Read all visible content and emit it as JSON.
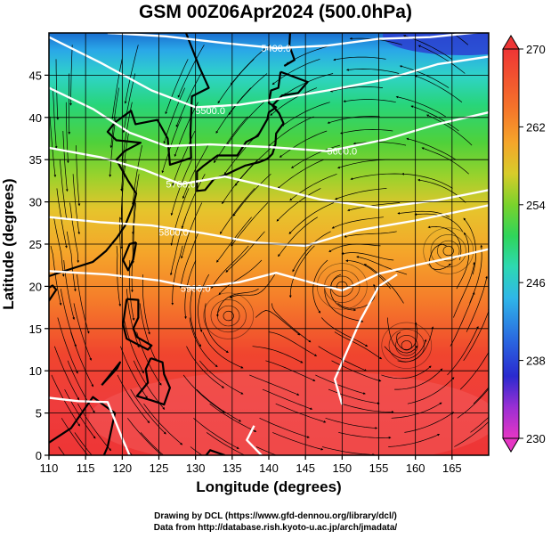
{
  "title": "GSM 00Z06Apr2024 (500.0hPa)",
  "x_axis": {
    "label": "Longitude (degrees)",
    "range": [
      110,
      170
    ],
    "ticks": [
      110,
      115,
      120,
      125,
      130,
      135,
      140,
      145,
      150,
      155,
      160,
      165
    ]
  },
  "y_axis": {
    "label": "Latitude  (degrees)",
    "range": [
      0,
      50
    ],
    "ticks": [
      0,
      5,
      10,
      15,
      20,
      25,
      30,
      35,
      40,
      45
    ]
  },
  "colorbar": {
    "range": [
      230,
      270
    ],
    "labels": [
      230,
      238,
      246,
      254,
      262,
      270
    ]
  },
  "contours": [
    {
      "label": "5400.0",
      "lon": 141,
      "lat": 48.2
    },
    {
      "label": "5500.0",
      "lon": 132,
      "lat": 40.8
    },
    {
      "label": "5600.0",
      "lon": 150,
      "lat": 36.0
    },
    {
      "label": "5700.0",
      "lon": 128,
      "lat": 32.1
    },
    {
      "label": "5800.0",
      "lon": 127,
      "lat": 26.4
    },
    {
      "label": "5900.0",
      "lon": 130,
      "lat": 19.8
    }
  ],
  "vortices": [
    {
      "lon": 134.5,
      "lat": 16.5
    },
    {
      "lon": 158.8,
      "lat": 13.0
    },
    {
      "lon": 164.5,
      "lat": 24.2
    },
    {
      "lon": 150,
      "lat": 20
    }
  ],
  "credits": {
    "drawing": "Drawing by DCL (https://www.gfd-dennou.org/library/dcl/)",
    "data": "Data from http://database.rish.kyoto-u.ac.jp/arch/jmadata/"
  },
  "colors": {
    "grid": "#000000",
    "contour": "#ffffff",
    "stream": "#000000"
  }
}
